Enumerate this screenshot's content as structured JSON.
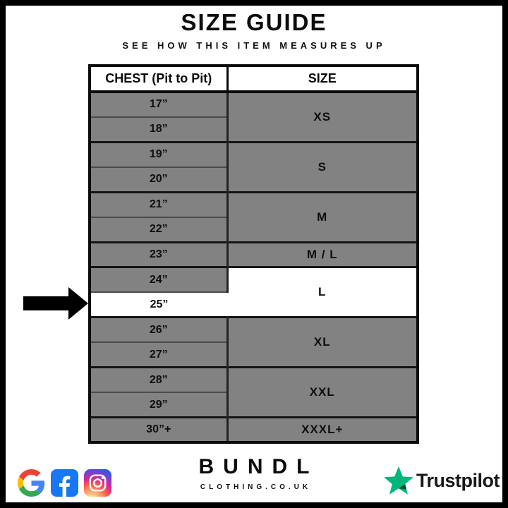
{
  "page": {
    "title": "SIZE GUIDE",
    "subtitle": "SEE HOW THIS ITEM MEASURES UP"
  },
  "table": {
    "columns": {
      "chest": "CHEST (Pit to Pit)",
      "size": "SIZE"
    },
    "groups": [
      {
        "size": "XS",
        "chests": [
          "17”",
          "18”"
        ]
      },
      {
        "size": "S",
        "chests": [
          "19”",
          "20”"
        ]
      },
      {
        "size": "M",
        "chests": [
          "21”",
          "22”"
        ]
      },
      {
        "size": "M / L",
        "chests": [
          "23”"
        ]
      },
      {
        "size": "L",
        "chests": [
          "24”",
          "25”"
        ]
      },
      {
        "size": "XL",
        "chests": [
          "26”",
          "27”"
        ]
      },
      {
        "size": "XXL",
        "chests": [
          "28”",
          "29”"
        ]
      },
      {
        "size": "XXXL+",
        "chests": [
          "30”+"
        ]
      }
    ],
    "selected": {
      "chest": "25”",
      "size": "L"
    },
    "colors": {
      "row_bg": "#828282",
      "highlight_bg": "#ffffff",
      "grid": "#141414",
      "header_bg": "#ffffff"
    }
  },
  "chart_data": {
    "type": "table",
    "title": "SIZE GUIDE",
    "columns": [
      "CHEST (Pit to Pit)",
      "SIZE"
    ],
    "rows": [
      [
        "17”",
        "XS"
      ],
      [
        "18”",
        "XS"
      ],
      [
        "19”",
        "S"
      ],
      [
        "20”",
        "S"
      ],
      [
        "21”",
        "M"
      ],
      [
        "22”",
        "M"
      ],
      [
        "23”",
        "M / L"
      ],
      [
        "24”",
        "L"
      ],
      [
        "25”",
        "L"
      ],
      [
        "26”",
        "XL"
      ],
      [
        "27”",
        "XL"
      ],
      [
        "28”",
        "XXL"
      ],
      [
        "29”",
        "XXL"
      ],
      [
        "30”+",
        "XXXL+"
      ]
    ],
    "highlighted_row": [
      "25”",
      "L"
    ]
  },
  "arrow": {
    "meaning": "points to selected chest measurement 25”",
    "color": "#000000"
  },
  "footer": {
    "brand_name": "BUNDL",
    "brand_domain": "CLOTHING.CO.UK",
    "social_icons": [
      "google-icon",
      "facebook-icon",
      "instagram-icon"
    ],
    "trustpilot_label": "Trustpilot",
    "colors": {
      "trustpilot_green": "#00b67a",
      "trustpilot_dark_green": "#005128",
      "facebook_blue": "#1877f2"
    }
  }
}
